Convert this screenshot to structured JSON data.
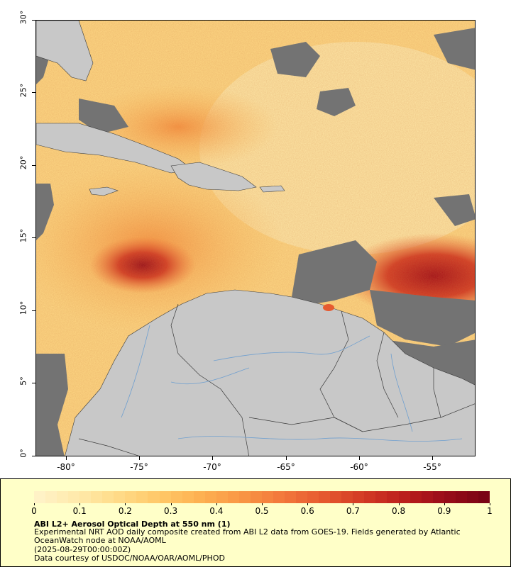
{
  "map": {
    "lat_ticks": [
      "30°",
      "25°",
      "20°",
      "15°",
      "10°",
      "5°",
      "0°"
    ],
    "lon_ticks": [
      "-80°",
      "-75°",
      "-70°",
      "-65°",
      "-60°",
      "-55°"
    ]
  },
  "legend": {
    "colorbar_ticks": [
      "0",
      "0.1",
      "0.2",
      "0.3",
      "0.4",
      "0.5",
      "0.6",
      "0.7",
      "0.8",
      "0.9",
      "1"
    ],
    "colors": [
      "#fff2c6",
      "#ffe9a8",
      "#ffda86",
      "#ffc766",
      "#fdb051",
      "#f99645",
      "#f2783b",
      "#e65a30",
      "#d33b25",
      "#bb1f1c",
      "#9a0d1a",
      "#7a0414"
    ],
    "title": "ABI L2+ Aerosol Optical Depth at 550 nm (1)",
    "description": "Experimental NRT AOD daily composite created from ABI L2 data from GOES-19. Fields generated by Atlantic OceanWatch node at NOAA/AOML",
    "date": "(2025-08-29T00:00:00Z)",
    "credit": "Data courtesy of USDOC/NOAA/OAR/AOML/PHOD"
  },
  "colors": {
    "land": "#c8c8c8",
    "no_data": "#737373",
    "border": "#3a3a3a",
    "rivers": "#6f9fcf",
    "legend_bg": "#ffffc8"
  }
}
